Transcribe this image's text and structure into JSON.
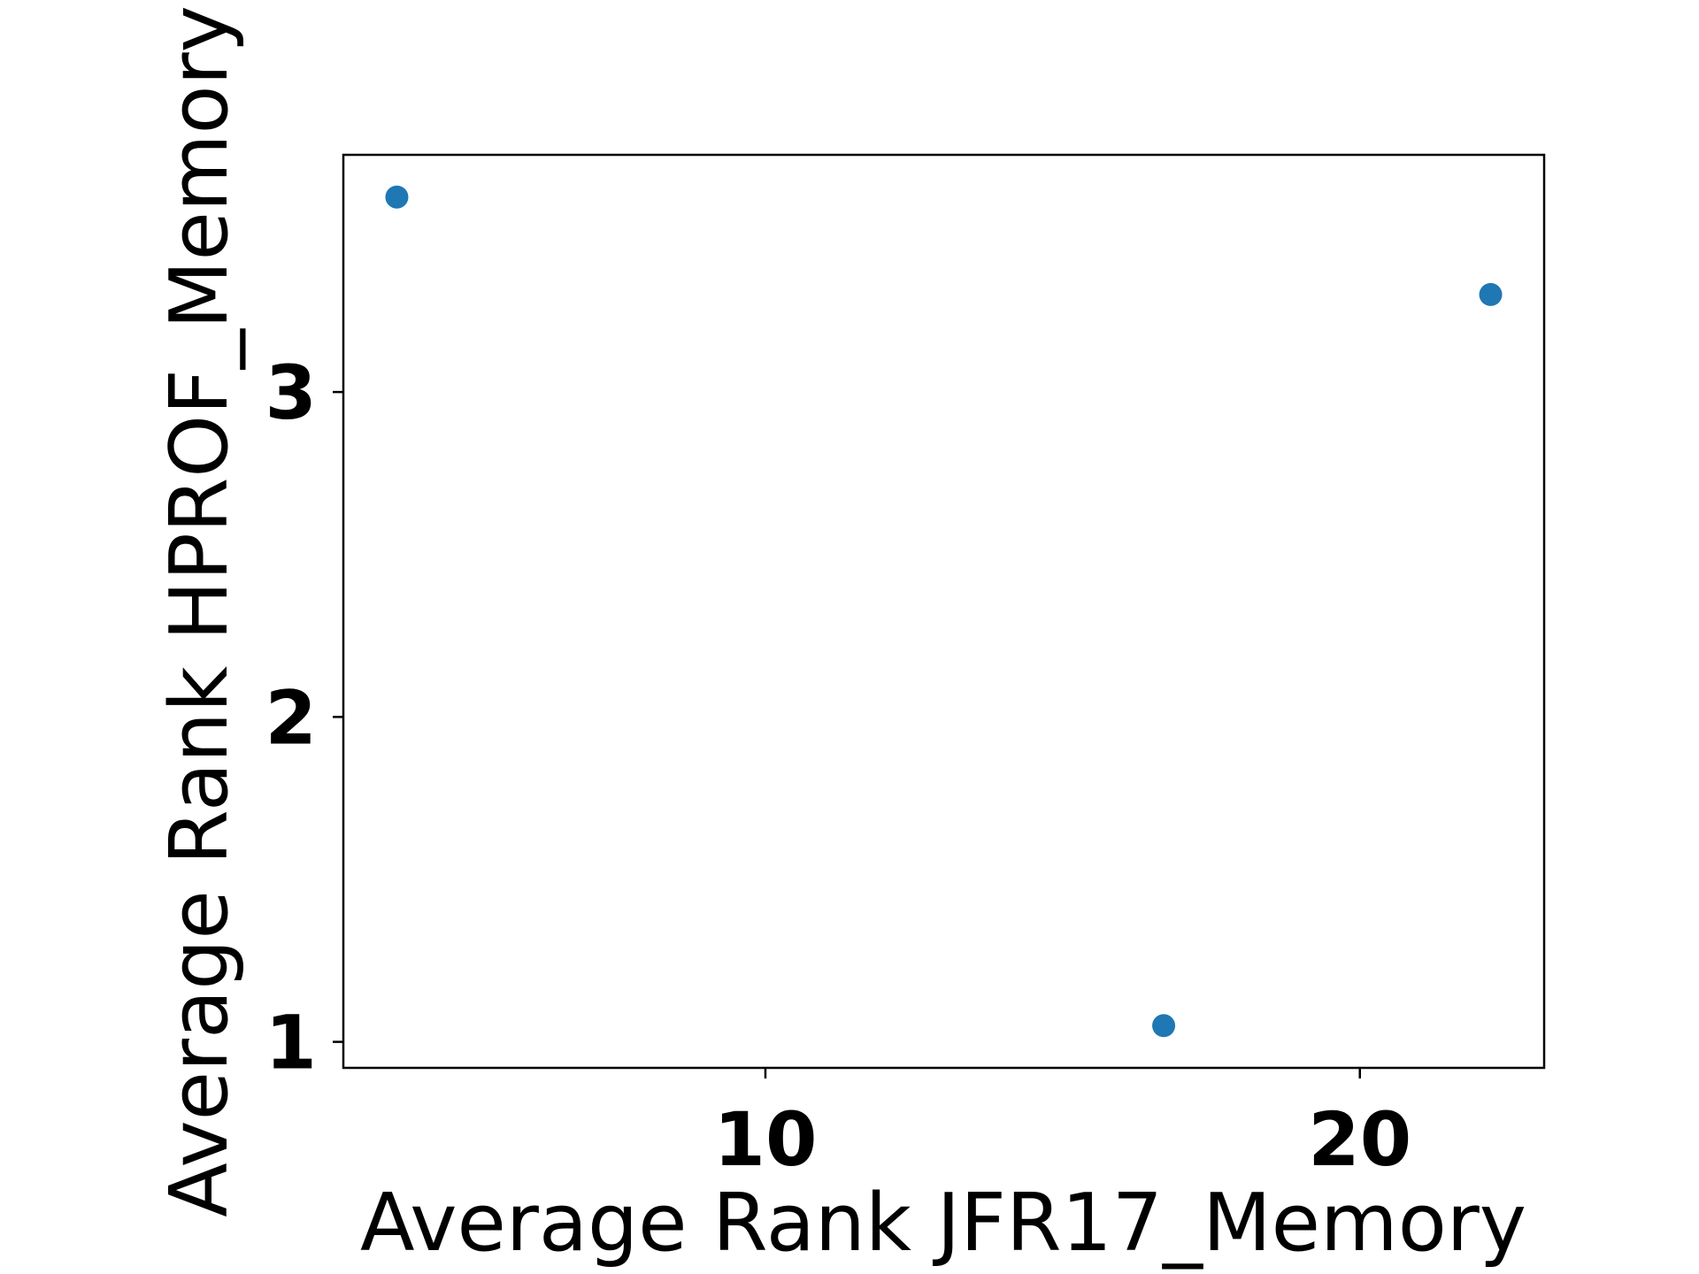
{
  "chart_data": {
    "type": "scatter",
    "title": "",
    "xlabel": "Average Rank JFR17_Memory",
    "ylabel": "Average Rank HPROF_Memory",
    "xlim": [
      2.9,
      23.1
    ],
    "ylim": [
      0.92,
      3.73
    ],
    "xticks": [
      10,
      20
    ],
    "yticks": [
      1,
      2,
      3
    ],
    "grid": false,
    "legend": false,
    "colors": {
      "points": "#1f77b4",
      "axes": "#000000"
    },
    "series": [
      {
        "points": [
          {
            "x": 3.8,
            "y": 3.6
          },
          {
            "x": 16.7,
            "y": 1.05
          },
          {
            "x": 22.2,
            "y": 3.3
          }
        ]
      }
    ]
  }
}
